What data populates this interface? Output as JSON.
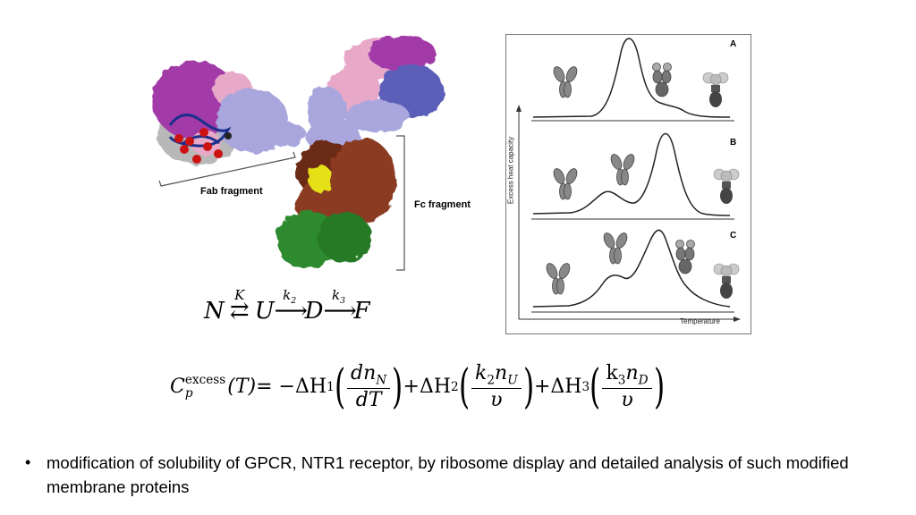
{
  "antibody": {
    "fab_label": "Fab fragment",
    "fc_label": "Fc fragment",
    "colors": {
      "heavy_light_magenta": "#a23aa8",
      "light_pink": "#e8a9c8",
      "lavender": "#a9a6de",
      "blue": "#5b5fb8",
      "brown": "#8a3a22",
      "dark_brown": "#6b2c18",
      "yellow": "#e6e012",
      "green": "#2f8a2f",
      "red": "#cc1111",
      "gray": "#9a9a9a"
    }
  },
  "dsc": {
    "ylabel": "Excess heat capacity",
    "xlabel": "Temperature",
    "panels": [
      {
        "letter": "A"
      },
      {
        "letter": "B"
      },
      {
        "letter": "C"
      }
    ],
    "icons": [
      "antibody-icon",
      "unfolded-antibody-icon",
      "aggregate-icon"
    ]
  },
  "equation1": {
    "N": "N",
    "K": "K",
    "U": "U",
    "k2": "k",
    "k2_sub": "2",
    "D": "D",
    "k3": "k",
    "k3_sub": "3",
    "F": "F"
  },
  "equation2": {
    "C": "C",
    "sup": "excess",
    "sub": "p",
    "T": "(T)",
    "eq": "= −ΔH",
    "h1": "1",
    "dnN": "dn",
    "nsubN": "N",
    "dT": "dT",
    "plus1": "+ΔH",
    "h2": "2",
    "k2nU": "k",
    "k2sub": "2",
    "nU": "n",
    "nUsub": "U",
    "v": "υ",
    "plus2": "+ΔH",
    "h3": "3",
    "k3nD": "k",
    "k3sub": "3",
    "nD": "n",
    "nDsub": "D"
  },
  "bullet": {
    "text": "modification of solubility of GPCR, NTR1 receptor, by ribosome display and detailed analysis of such modified membrane proteins"
  }
}
